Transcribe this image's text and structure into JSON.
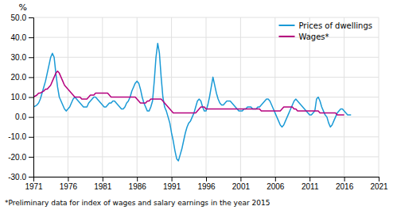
{
  "chart_data": {
    "type": "line",
    "y_label": "%",
    "footnote": "*Preliminary data for index of wages and salary earnings in the year 2015",
    "xlim": [
      1971,
      2021
    ],
    "ylim": [
      -30,
      50
    ],
    "xticks": [
      1971,
      1976,
      1981,
      1986,
      1991,
      1996,
      2001,
      2006,
      2011,
      2016,
      2021
    ],
    "yticks": [
      {
        "value": -30,
        "label": "-30.0"
      },
      {
        "value": -20,
        "label": "-20.0"
      },
      {
        "value": -10,
        "label": "-10.0"
      },
      {
        "value": 0,
        "label": "0.0"
      },
      {
        "value": 10,
        "label": "10.0"
      },
      {
        "value": 20,
        "label": "20.0"
      },
      {
        "value": 30,
        "label": "30.0"
      },
      {
        "value": 40,
        "label": "40.0"
      },
      {
        "value": 50,
        "label": "50.0"
      }
    ],
    "grid": true,
    "legend": "top-right",
    "series": [
      {
        "name": "Prices of dwellings",
        "color": "#1a9ad6",
        "x": [
          1971,
          1971.25,
          1971.5,
          1971.75,
          1972,
          1972.25,
          1972.5,
          1972.75,
          1973,
          1973.25,
          1973.5,
          1973.75,
          1974,
          1974.25,
          1974.5,
          1974.75,
          1975,
          1975.25,
          1975.5,
          1975.75,
          1976,
          1976.25,
          1976.5,
          1976.75,
          1977,
          1977.25,
          1977.5,
          1977.75,
          1978,
          1978.25,
          1978.5,
          1978.75,
          1979,
          1979.25,
          1979.5,
          1979.75,
          1980,
          1980.25,
          1980.5,
          1980.75,
          1981,
          1981.25,
          1981.5,
          1981.75,
          1982,
          1982.25,
          1982.5,
          1982.75,
          1983,
          1983.25,
          1983.5,
          1983.75,
          1984,
          1984.25,
          1984.5,
          1984.75,
          1985,
          1985.25,
          1985.5,
          1985.75,
          1986,
          1986.25,
          1986.5,
          1986.75,
          1987,
          1987.25,
          1987.5,
          1987.75,
          1988,
          1988.25,
          1988.5,
          1988.75,
          1989,
          1989.25,
          1989.5,
          1989.75,
          1990,
          1990.25,
          1990.5,
          1990.75,
          1991,
          1991.25,
          1991.5,
          1991.75,
          1992,
          1992.25,
          1992.5,
          1992.75,
          1993,
          1993.25,
          1993.5,
          1993.75,
          1994,
          1994.25,
          1994.5,
          1994.75,
          1995,
          1995.25,
          1995.5,
          1995.75,
          1996,
          1996.25,
          1996.5,
          1996.75,
          1997,
          1997.25,
          1997.5,
          1997.75,
          1998,
          1998.25,
          1998.5,
          1998.75,
          1999,
          1999.25,
          1999.5,
          1999.75,
          2000,
          2000.25,
          2000.5,
          2000.75,
          2001,
          2001.25,
          2001.5,
          2001.75,
          2002,
          2002.25,
          2002.5,
          2002.75,
          2003,
          2003.25,
          2003.5,
          2003.75,
          2004,
          2004.25,
          2004.5,
          2004.75,
          2005,
          2005.25,
          2005.5,
          2005.75,
          2006,
          2006.25,
          2006.5,
          2006.75,
          2007,
          2007.25,
          2007.5,
          2007.75,
          2008,
          2008.25,
          2008.5,
          2008.75,
          2009,
          2009.25,
          2009.5,
          2009.75,
          2010,
          2010.25,
          2010.5,
          2010.75,
          2011,
          2011.25,
          2011.5,
          2011.75,
          2012,
          2012.25,
          2012.5,
          2012.75,
          2013,
          2013.25,
          2013.5,
          2013.75,
          2014,
          2014.25,
          2014.5,
          2014.75,
          2015,
          2015.25,
          2015.5,
          2015.75,
          2016,
          2016.25,
          2016.5,
          2016.75,
          2017
        ],
        "values": [
          5.0,
          5.5,
          6.0,
          7.0,
          9.0,
          12.0,
          15.0,
          18.0,
          22.0,
          26.0,
          30.0,
          32.0,
          30.0,
          22.0,
          15.0,
          10.0,
          8.0,
          6.0,
          4.0,
          3.0,
          4.0,
          5.0,
          7.0,
          9.0,
          10.0,
          9.0,
          8.0,
          7.0,
          6.0,
          5.0,
          5.0,
          5.0,
          7.0,
          8.0,
          9.0,
          10.0,
          10.0,
          9.0,
          8.0,
          7.0,
          6.0,
          5.0,
          5.0,
          6.0,
          7.0,
          7.0,
          8.0,
          8.0,
          7.0,
          6.0,
          5.0,
          4.0,
          4.0,
          5.0,
          7.0,
          8.0,
          10.0,
          13.0,
          15.0,
          17.0,
          18.0,
          17.0,
          14.0,
          10.0,
          7.0,
          5.0,
          3.0,
          3.0,
          5.0,
          8.0,
          18.0,
          30.0,
          37.0,
          32.0,
          20.0,
          10.0,
          5.0,
          3.0,
          0.0,
          -3.0,
          -8.0,
          -12.0,
          -17.0,
          -21.0,
          -22.0,
          -19.0,
          -16.0,
          -12.0,
          -8.0,
          -5.0,
          -3.0,
          -2.0,
          0.0,
          2.0,
          5.0,
          8.0,
          9.0,
          8.0,
          5.0,
          3.0,
          3.0,
          6.0,
          10.0,
          15.0,
          20.0,
          16.0,
          12.0,
          9.0,
          7.0,
          6.0,
          6.0,
          7.0,
          8.0,
          8.0,
          8.0,
          7.0,
          6.0,
          5.0,
          4.0,
          3.0,
          3.0,
          3.0,
          4.0,
          4.0,
          5.0,
          5.0,
          5.0,
          4.0,
          4.0,
          4.0,
          5.0,
          5.0,
          6.0,
          7.0,
          8.0,
          9.0,
          9.0,
          8.0,
          6.0,
          4.0,
          2.0,
          0.0,
          -2.0,
          -4.0,
          -5.0,
          -4.0,
          -2.0,
          0.0,
          2.0,
          4.0,
          6.0,
          8.0,
          9.0,
          8.0,
          7.0,
          6.0,
          5.0,
          4.0,
          3.0,
          2.0,
          1.0,
          1.0,
          2.0,
          3.0,
          9.0,
          10.0,
          8.0,
          5.0,
          3.0,
          1.0,
          0.0,
          -3.0,
          -5.0,
          -4.0,
          -2.0,
          0.0,
          2.0,
          3.0,
          4.0,
          4.0,
          3.0,
          2.0,
          1.0,
          1.0,
          1.0
        ]
      },
      {
        "name": "Wages*",
        "color": "#b5007e",
        "x": [
          1971,
          1971.25,
          1971.5,
          1971.75,
          1972,
          1972.25,
          1972.5,
          1972.75,
          1973,
          1973.25,
          1973.5,
          1973.75,
          1974,
          1974.25,
          1974.5,
          1974.75,
          1975,
          1975.25,
          1975.5,
          1975.75,
          1976,
          1976.25,
          1976.5,
          1976.75,
          1977,
          1977.25,
          1977.5,
          1977.75,
          1978,
          1978.25,
          1978.5,
          1978.75,
          1979,
          1979.25,
          1979.5,
          1979.75,
          1980,
          1980.25,
          1980.5,
          1980.75,
          1981,
          1981.25,
          1981.5,
          1981.75,
          1982,
          1982.25,
          1982.5,
          1982.75,
          1983,
          1983.25,
          1983.5,
          1983.75,
          1984,
          1984.25,
          1984.5,
          1984.75,
          1985,
          1985.25,
          1985.5,
          1985.75,
          1986,
          1986.25,
          1986.5,
          1986.75,
          1987,
          1987.25,
          1987.5,
          1987.75,
          1988,
          1988.25,
          1988.5,
          1988.75,
          1989,
          1989.25,
          1989.5,
          1989.75,
          1990,
          1990.25,
          1990.5,
          1990.75,
          1991,
          1991.25,
          1991.5,
          1991.75,
          1992,
          1992.25,
          1992.5,
          1992.75,
          1993,
          1993.25,
          1993.5,
          1993.75,
          1994,
          1994.25,
          1994.5,
          1994.75,
          1995,
          1995.25,
          1995.5,
          1995.75,
          1996,
          1996.25,
          1996.5,
          1996.75,
          1997,
          1997.25,
          1997.5,
          1997.75,
          1998,
          1998.25,
          1998.5,
          1998.75,
          1999,
          1999.25,
          1999.5,
          1999.75,
          2000,
          2000.25,
          2000.5,
          2000.75,
          2001,
          2001.25,
          2001.5,
          2001.75,
          2002,
          2002.25,
          2002.5,
          2002.75,
          2003,
          2003.25,
          2003.5,
          2003.75,
          2004,
          2004.25,
          2004.5,
          2004.75,
          2005,
          2005.25,
          2005.5,
          2005.75,
          2006,
          2006.25,
          2006.5,
          2006.75,
          2007,
          2007.25,
          2007.5,
          2007.75,
          2008,
          2008.25,
          2008.5,
          2008.75,
          2009,
          2009.25,
          2009.5,
          2009.75,
          2010,
          2010.25,
          2010.5,
          2010.75,
          2011,
          2011.25,
          2011.5,
          2011.75,
          2012,
          2012.25,
          2012.5,
          2012.75,
          2013,
          2013.25,
          2013.5,
          2013.75,
          2014,
          2014.25,
          2014.5,
          2014.75,
          2015,
          2015.25,
          2015.5,
          2015.75,
          2016
        ],
        "values": [
          10.0,
          10.5,
          11.0,
          12.0,
          12.0,
          12.5,
          13.0,
          14.0,
          14.0,
          15.0,
          16.0,
          18.0,
          20.0,
          22.0,
          23.0,
          22.0,
          20.0,
          18.0,
          16.0,
          15.0,
          14.0,
          13.0,
          12.0,
          11.0,
          10.0,
          10.0,
          10.0,
          10.0,
          9.0,
          9.0,
          9.0,
          9.0,
          10.0,
          11.0,
          11.0,
          11.0,
          12.0,
          12.0,
          12.0,
          12.0,
          12.0,
          12.0,
          12.0,
          12.0,
          11.0,
          10.0,
          10.0,
          10.0,
          10.0,
          10.0,
          10.0,
          10.0,
          10.0,
          10.0,
          10.0,
          10.0,
          10.0,
          10.0,
          10.0,
          10.0,
          9.0,
          8.0,
          7.0,
          7.0,
          7.0,
          7.0,
          8.0,
          8.0,
          9.0,
          9.0,
          9.0,
          9.0,
          9.0,
          9.0,
          9.0,
          8.0,
          7.0,
          6.0,
          5.0,
          4.0,
          3.0,
          2.0,
          2.0,
          2.0,
          2.0,
          2.0,
          2.0,
          2.0,
          2.0,
          2.0,
          2.0,
          2.0,
          2.0,
          2.0,
          2.0,
          3.0,
          4.0,
          5.0,
          5.0,
          5.0,
          4.0,
          4.0,
          4.0,
          4.0,
          4.0,
          4.0,
          4.0,
          4.0,
          4.0,
          4.0,
          4.0,
          4.0,
          4.0,
          4.0,
          4.0,
          4.0,
          4.0,
          4.0,
          4.0,
          4.0,
          4.0,
          4.0,
          4.0,
          4.0,
          4.0,
          4.0,
          4.0,
          4.0,
          4.0,
          4.0,
          4.0,
          4.0,
          3.0,
          3.0,
          3.0,
          3.0,
          3.0,
          3.0,
          3.0,
          3.0,
          3.0,
          3.0,
          3.0,
          3.0,
          4.0,
          5.0,
          5.0,
          5.0,
          5.0,
          5.0,
          5.0,
          4.0,
          4.0,
          3.0,
          3.0,
          3.0,
          3.0,
          3.0,
          3.0,
          3.0,
          3.0,
          3.0,
          3.0,
          3.0,
          3.0,
          3.0,
          2.0,
          2.0,
          2.0,
          2.0,
          2.0,
          2.0,
          2.0,
          2.0,
          2.0,
          2.0,
          1.0,
          1.0,
          1.0,
          1.0,
          1.0
        ]
      }
    ]
  }
}
